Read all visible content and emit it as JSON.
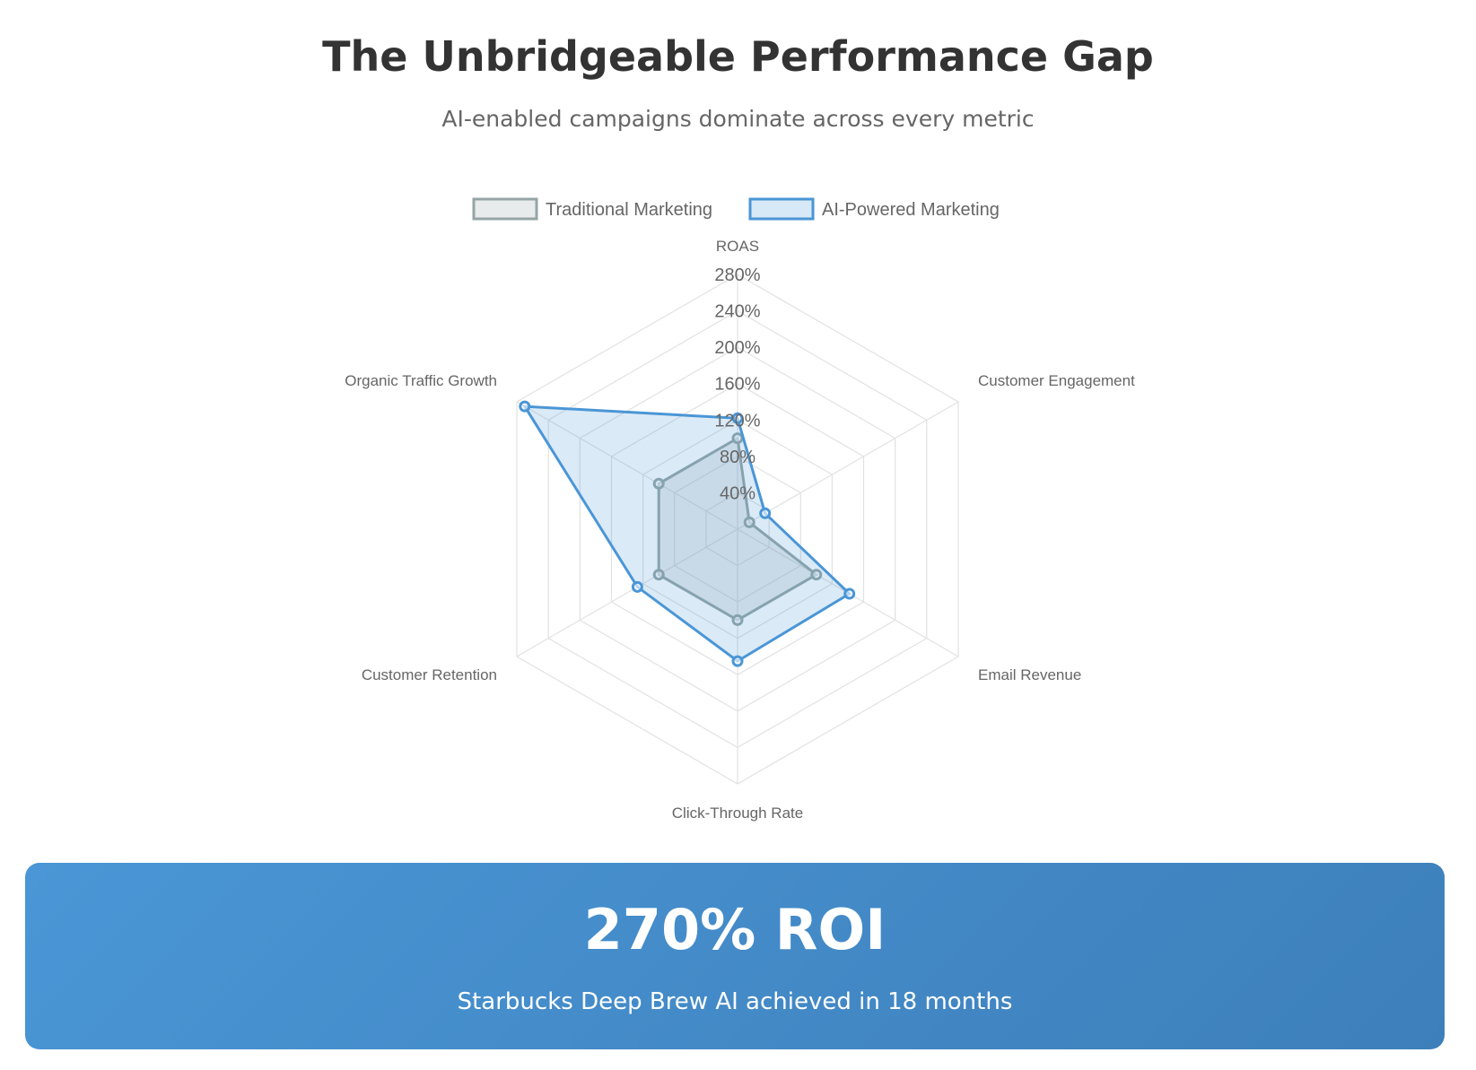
{
  "header": {
    "title": "The Unbridgeable Performance Gap",
    "subtitle": "AI-enabled campaigns dominate across every metric"
  },
  "chart_data": {
    "type": "radar",
    "axes": [
      "ROAS",
      "Customer Engagement",
      "Email Revenue",
      "Click-Through Rate",
      "Customer Retention",
      "Organic Traffic Growth"
    ],
    "r_ticks": [
      "40%",
      "80%",
      "120%",
      "160%",
      "200%",
      "240%",
      "280%"
    ],
    "r_range": [
      0,
      280
    ],
    "legend_position": "top",
    "series": [
      {
        "name": "Traditional Marketing",
        "values": [
          100,
          15,
          100,
          100,
          100,
          100
        ],
        "stroke": "#95a5a6",
        "fill": "#95a5a6"
      },
      {
        "name": "AI-Powered Marketing",
        "values": [
          122,
          35,
          142,
          145,
          127,
          270
        ],
        "stroke": "#4a96d6",
        "fill": "#4a96d6"
      }
    ],
    "grid": true
  },
  "roi_card": {
    "value": "270% ROI",
    "caption": "Starbucks Deep Brew AI achieved in 18 months"
  }
}
